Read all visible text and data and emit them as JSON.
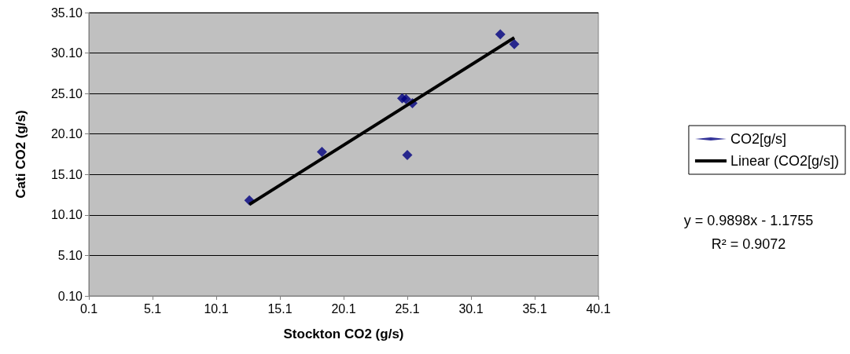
{
  "chart_data": {
    "type": "scatter",
    "xlabel": "Stockton CO2 (g/s)",
    "ylabel": "Cati CO2 (g/s)",
    "series": [
      {
        "name": "CO2[g/s]",
        "marker": "diamond",
        "color": "#000080",
        "x": [
          12.7,
          18.4,
          24.7,
          25.0,
          25.5,
          25.1,
          32.4,
          33.5
        ],
        "values": [
          11.9,
          17.9,
          24.5,
          24.4,
          23.9,
          17.5,
          32.4,
          31.2
        ]
      },
      {
        "name": "Linear (CO2[g/s])",
        "type": "line",
        "marker": "none",
        "color": "#000000",
        "x": [
          12.7,
          33.5
        ],
        "values": [
          11.4,
          32.0
        ]
      }
    ],
    "xlim": [
      0.1,
      40.1
    ],
    "xticks": [
      0.1,
      5.1,
      10.1,
      15.1,
      20.1,
      25.1,
      30.1,
      35.1,
      40.1
    ],
    "ylim": [
      0.1,
      35.1
    ],
    "yticks": [
      {
        "value": 0.1,
        "label": "0.10"
      },
      {
        "value": 5.1,
        "label": "5.10"
      },
      {
        "value": 10.1,
        "label": "10.10"
      },
      {
        "value": 15.1,
        "label": "15.10"
      },
      {
        "value": 20.1,
        "label": "20.10"
      },
      {
        "value": 25.1,
        "label": "25.10"
      },
      {
        "value": 30.1,
        "label": "30.10"
      },
      {
        "value": 35.1,
        "label": "35.10"
      }
    ],
    "grid": "y",
    "legend": "right",
    "annotations": [
      "y = 0.9898x - 1.1755",
      "R² = 0.9072"
    ]
  }
}
